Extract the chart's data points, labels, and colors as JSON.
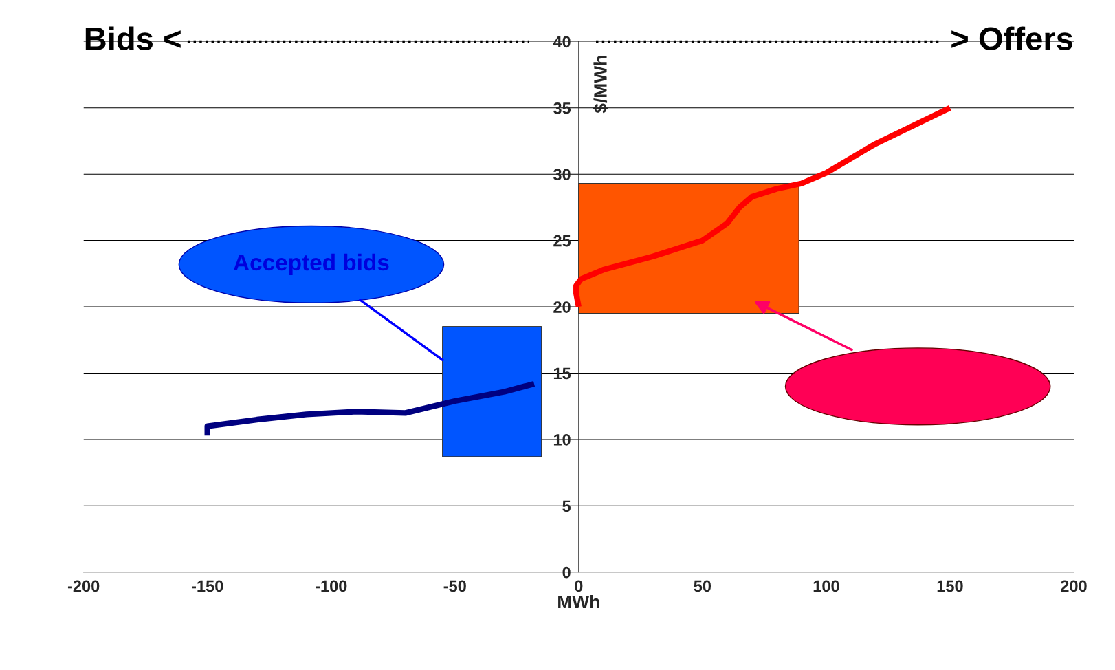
{
  "chart_data": {
    "type": "line",
    "xlabel": "MWh",
    "ylabel": "$/MWh",
    "xlim": [
      -200,
      200
    ],
    "ylim": [
      0,
      40
    ],
    "xticks": [
      -200,
      -150,
      -100,
      -50,
      0,
      50,
      100,
      150,
      200
    ],
    "yticks": [
      0,
      5,
      10,
      15,
      20,
      25,
      30,
      35,
      40
    ],
    "grid": "y",
    "legend": false,
    "series": [
      {
        "type": "bar",
        "color": "#0055ff",
        "x": [
          -35
        ],
        "base": [
          8.7
        ],
        "values": [
          9.8
        ],
        "xerrors": [
          20
        ]
      },
      {
        "type": "bar",
        "color": "#ff5500",
        "x": [
          44.5
        ],
        "base": [
          19.5
        ],
        "values": [
          9.8
        ],
        "xerrors": [
          44.5
        ]
      },
      {
        "color": "#000080",
        "x": [
          -150,
          -150,
          -130,
          -110,
          -90,
          -70,
          -50,
          -30,
          -18
        ],
        "values": [
          10.3,
          11,
          11.5,
          11.9,
          12.1,
          12,
          12.9,
          13.6,
          14.2
        ]
      },
      {
        "color": "#ff0000",
        "x": [
          0,
          -1,
          -1,
          1,
          10,
          30,
          50,
          60,
          65,
          70,
          80,
          90,
          100,
          120,
          150
        ],
        "values": [
          20,
          21,
          21.6,
          22.1,
          22.8,
          23.8,
          25,
          26.3,
          27.5,
          28.3,
          28.9,
          29.3,
          30.1,
          32.3,
          35
        ]
      }
    ],
    "annotations": [
      "Bids <",
      "> Offers",
      {
        "text": "Accepted bids",
        "x": -55,
        "y": 16
      }
    ]
  }
}
